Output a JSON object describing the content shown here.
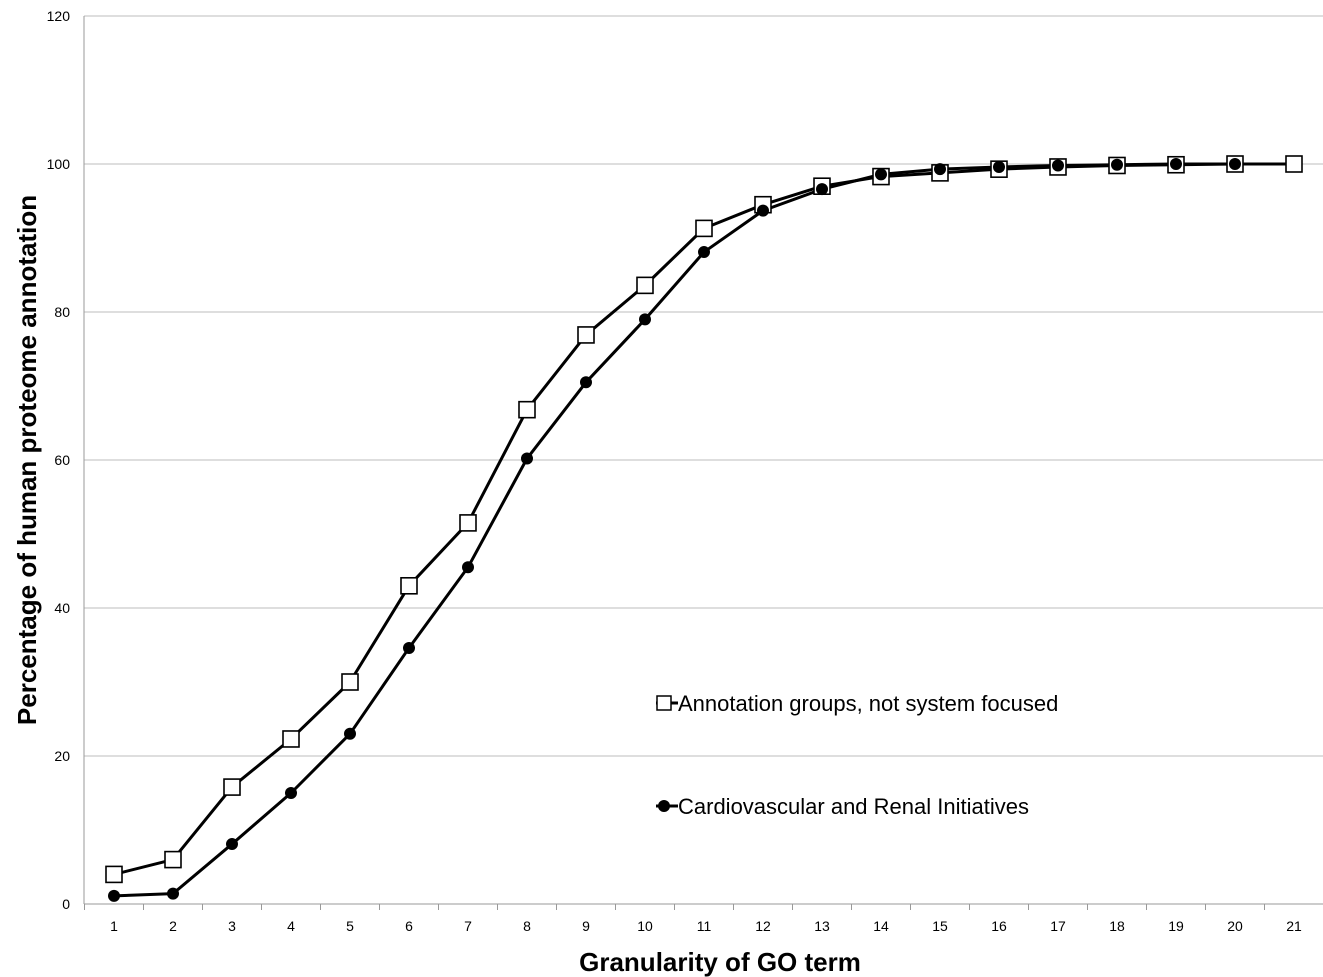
{
  "chart_data": {
    "type": "line",
    "title": "",
    "xlabel": "Granularity of GO term",
    "ylabel": "Percentage of human proteome annotation",
    "categories": [
      "1",
      "2",
      "3",
      "4",
      "5",
      "6",
      "7",
      "8",
      "9",
      "10",
      "11",
      "12",
      "13",
      "14",
      "15",
      "16",
      "17",
      "18",
      "19",
      "20",
      "21"
    ],
    "yticks": [
      "0",
      "20",
      "40",
      "60",
      "80",
      "100",
      "120"
    ],
    "ylim": [
      0,
      120
    ],
    "grid": true,
    "legend_position": "bottom-center",
    "series": [
      {
        "name": "Annotation groups, not system focused",
        "marker": "open-square",
        "color": "#000000",
        "values": [
          4,
          6,
          15.8,
          22.3,
          30,
          43,
          51.5,
          66.8,
          76.9,
          83.6,
          91.3,
          94.5,
          97,
          98.3,
          98.8,
          99.3,
          99.6,
          99.8,
          99.9,
          100,
          100
        ]
      },
      {
        "name": "Cardiovascular and Renal Initiatives",
        "marker": "filled-circle",
        "color": "#000000",
        "values": [
          1.1,
          1.4,
          8.1,
          15,
          23,
          34.6,
          45.5,
          60.2,
          70.5,
          79,
          88.1,
          93.7,
          96.6,
          98.6,
          99.3,
          99.6,
          99.8,
          99.9,
          100,
          100,
          null
        ]
      }
    ]
  }
}
